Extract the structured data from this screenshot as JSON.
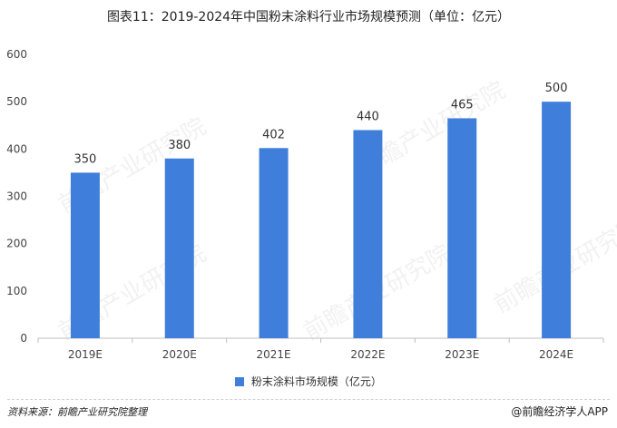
{
  "page": {
    "title": "图表11：2019-2024年中国粉末涂料行业市场规模预测（单位：亿元）",
    "source": "资料来源：前瞻产业研究院整理",
    "brand": "@前瞻经济学人APP",
    "watermark": "前瞻产业研究院"
  },
  "chart_data": {
    "type": "bar",
    "categories": [
      "2019E",
      "2020E",
      "2021E",
      "2022E",
      "2023E",
      "2024E"
    ],
    "series": [
      {
        "name": "粉末涂料市场规模（亿元）",
        "values": [
          350,
          380,
          402,
          440,
          465,
          500
        ]
      }
    ],
    "ylim": [
      0,
      600
    ],
    "yticks": [
      0,
      100,
      200,
      300,
      400,
      500,
      600
    ],
    "grid": false,
    "legend": "bottom-center",
    "colors": {
      "bar": "#3f7fdb",
      "axis": "#bfbfbf"
    }
  }
}
